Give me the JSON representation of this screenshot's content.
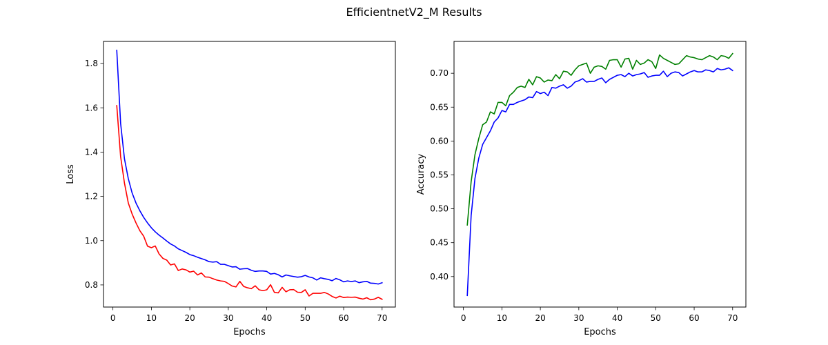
{
  "title": "EfficientnetV2_M Results",
  "chart_data": [
    {
      "type": "line",
      "title": "",
      "xlabel": "Epochs",
      "ylabel": "Loss",
      "xlim": [
        -2.45,
        73.45
      ],
      "ylim": [
        0.7,
        1.9
      ],
      "xticks": [
        0,
        10,
        20,
        30,
        40,
        50,
        60,
        70
      ],
      "yticks": [
        0.8,
        1.0,
        1.2,
        1.4,
        1.6,
        1.8
      ],
      "ytick_labels": [
        "0.8",
        "1.0",
        "1.2",
        "1.4",
        "1.6",
        "1.8"
      ],
      "grid": false,
      "legend": "none",
      "x": [
        1,
        2,
        3,
        4,
        5,
        6,
        7,
        8,
        9,
        10,
        11,
        12,
        13,
        14,
        15,
        16,
        17,
        18,
        19,
        20,
        21,
        22,
        23,
        24,
        25,
        26,
        27,
        28,
        29,
        30,
        31,
        32,
        33,
        34,
        35,
        36,
        37,
        38,
        39,
        40,
        41,
        42,
        43,
        44,
        45,
        46,
        47,
        48,
        49,
        50,
        51,
        52,
        53,
        54,
        55,
        56,
        57,
        58,
        59,
        60,
        61,
        62,
        63,
        64,
        65,
        66,
        67,
        68,
        69,
        70
      ],
      "series": [
        {
          "color": "#0000ff",
          "values": [
            1.86,
            1.53,
            1.37,
            1.28,
            1.215,
            1.17,
            1.135,
            1.105,
            1.08,
            1.058,
            1.04,
            1.025,
            1.012,
            0.998,
            0.985,
            0.976,
            0.963,
            0.955,
            0.947,
            0.937,
            0.932,
            0.925,
            0.919,
            0.913,
            0.905,
            0.903,
            0.905,
            0.893,
            0.893,
            0.887,
            0.881,
            0.882,
            0.871,
            0.873,
            0.874,
            0.866,
            0.861,
            0.863,
            0.863,
            0.861,
            0.849,
            0.852,
            0.846,
            0.836,
            0.845,
            0.841,
            0.838,
            0.835,
            0.837,
            0.843,
            0.836,
            0.832,
            0.822,
            0.832,
            0.828,
            0.825,
            0.819,
            0.829,
            0.823,
            0.814,
            0.818,
            0.815,
            0.818,
            0.81,
            0.814,
            0.816,
            0.808,
            0.807,
            0.804,
            0.81
          ]
        },
        {
          "color": "#ff0000",
          "values": [
            1.61,
            1.38,
            1.26,
            1.17,
            1.12,
            1.08,
            1.045,
            1.02,
            0.975,
            0.968,
            0.976,
            0.94,
            0.92,
            0.912,
            0.89,
            0.895,
            0.865,
            0.872,
            0.868,
            0.858,
            0.862,
            0.845,
            0.854,
            0.836,
            0.835,
            0.828,
            0.822,
            0.818,
            0.816,
            0.806,
            0.795,
            0.791,
            0.816,
            0.793,
            0.787,
            0.783,
            0.796,
            0.778,
            0.774,
            0.778,
            0.801,
            0.766,
            0.764,
            0.789,
            0.769,
            0.778,
            0.779,
            0.767,
            0.766,
            0.778,
            0.75,
            0.762,
            0.762,
            0.762,
            0.766,
            0.759,
            0.748,
            0.741,
            0.749,
            0.743,
            0.745,
            0.744,
            0.745,
            0.74,
            0.736,
            0.742,
            0.733,
            0.736,
            0.744,
            0.735
          ]
        }
      ]
    },
    {
      "type": "line",
      "title": "",
      "xlabel": "Epochs",
      "ylabel": "Accuracy",
      "xlim": [
        -2.45,
        73.45
      ],
      "ylim": [
        0.355,
        0.747
      ],
      "xticks": [
        0,
        10,
        20,
        30,
        40,
        50,
        60,
        70
      ],
      "yticks": [
        0.4,
        0.45,
        0.5,
        0.55,
        0.6,
        0.65,
        0.7
      ],
      "ytick_labels": [
        "0.40",
        "0.45",
        "0.50",
        "0.55",
        "0.60",
        "0.65",
        "0.70"
      ],
      "grid": false,
      "legend": "none",
      "x": [
        1,
        2,
        3,
        4,
        5,
        6,
        7,
        8,
        9,
        10,
        11,
        12,
        13,
        14,
        15,
        16,
        17,
        18,
        19,
        20,
        21,
        22,
        23,
        24,
        25,
        26,
        27,
        28,
        29,
        30,
        31,
        32,
        33,
        34,
        35,
        36,
        37,
        38,
        39,
        40,
        41,
        42,
        43,
        44,
        45,
        46,
        47,
        48,
        49,
        50,
        51,
        52,
        53,
        54,
        55,
        56,
        57,
        58,
        59,
        60,
        61,
        62,
        63,
        64,
        65,
        66,
        67,
        68,
        69,
        70
      ],
      "series": [
        {
          "color": "#0000ff",
          "values": [
            0.372,
            0.49,
            0.545,
            0.575,
            0.595,
            0.605,
            0.615,
            0.628,
            0.634,
            0.645,
            0.643,
            0.654,
            0.654,
            0.657,
            0.659,
            0.661,
            0.665,
            0.664,
            0.673,
            0.67,
            0.672,
            0.667,
            0.679,
            0.678,
            0.681,
            0.683,
            0.678,
            0.681,
            0.687,
            0.689,
            0.692,
            0.687,
            0.688,
            0.688,
            0.691,
            0.693,
            0.686,
            0.691,
            0.694,
            0.697,
            0.698,
            0.695,
            0.7,
            0.696,
            0.698,
            0.699,
            0.701,
            0.694,
            0.696,
            0.697,
            0.697,
            0.703,
            0.695,
            0.7,
            0.702,
            0.701,
            0.696,
            0.699,
            0.702,
            0.704,
            0.702,
            0.702,
            0.705,
            0.704,
            0.702,
            0.707,
            0.705,
            0.706,
            0.708,
            0.704
          ]
        },
        {
          "color": "#008000",
          "values": [
            0.476,
            0.54,
            0.58,
            0.604,
            0.624,
            0.628,
            0.643,
            0.64,
            0.657,
            0.657,
            0.652,
            0.667,
            0.672,
            0.679,
            0.681,
            0.679,
            0.691,
            0.683,
            0.695,
            0.693,
            0.687,
            0.69,
            0.689,
            0.698,
            0.692,
            0.703,
            0.702,
            0.697,
            0.705,
            0.711,
            0.713,
            0.715,
            0.7,
            0.709,
            0.711,
            0.71,
            0.706,
            0.719,
            0.72,
            0.72,
            0.709,
            0.721,
            0.722,
            0.706,
            0.719,
            0.713,
            0.715,
            0.72,
            0.717,
            0.707,
            0.727,
            0.722,
            0.719,
            0.716,
            0.713,
            0.714,
            0.72,
            0.726,
            0.724,
            0.723,
            0.721,
            0.72,
            0.723,
            0.726,
            0.724,
            0.72,
            0.726,
            0.725,
            0.722,
            0.729
          ]
        }
      ]
    }
  ]
}
